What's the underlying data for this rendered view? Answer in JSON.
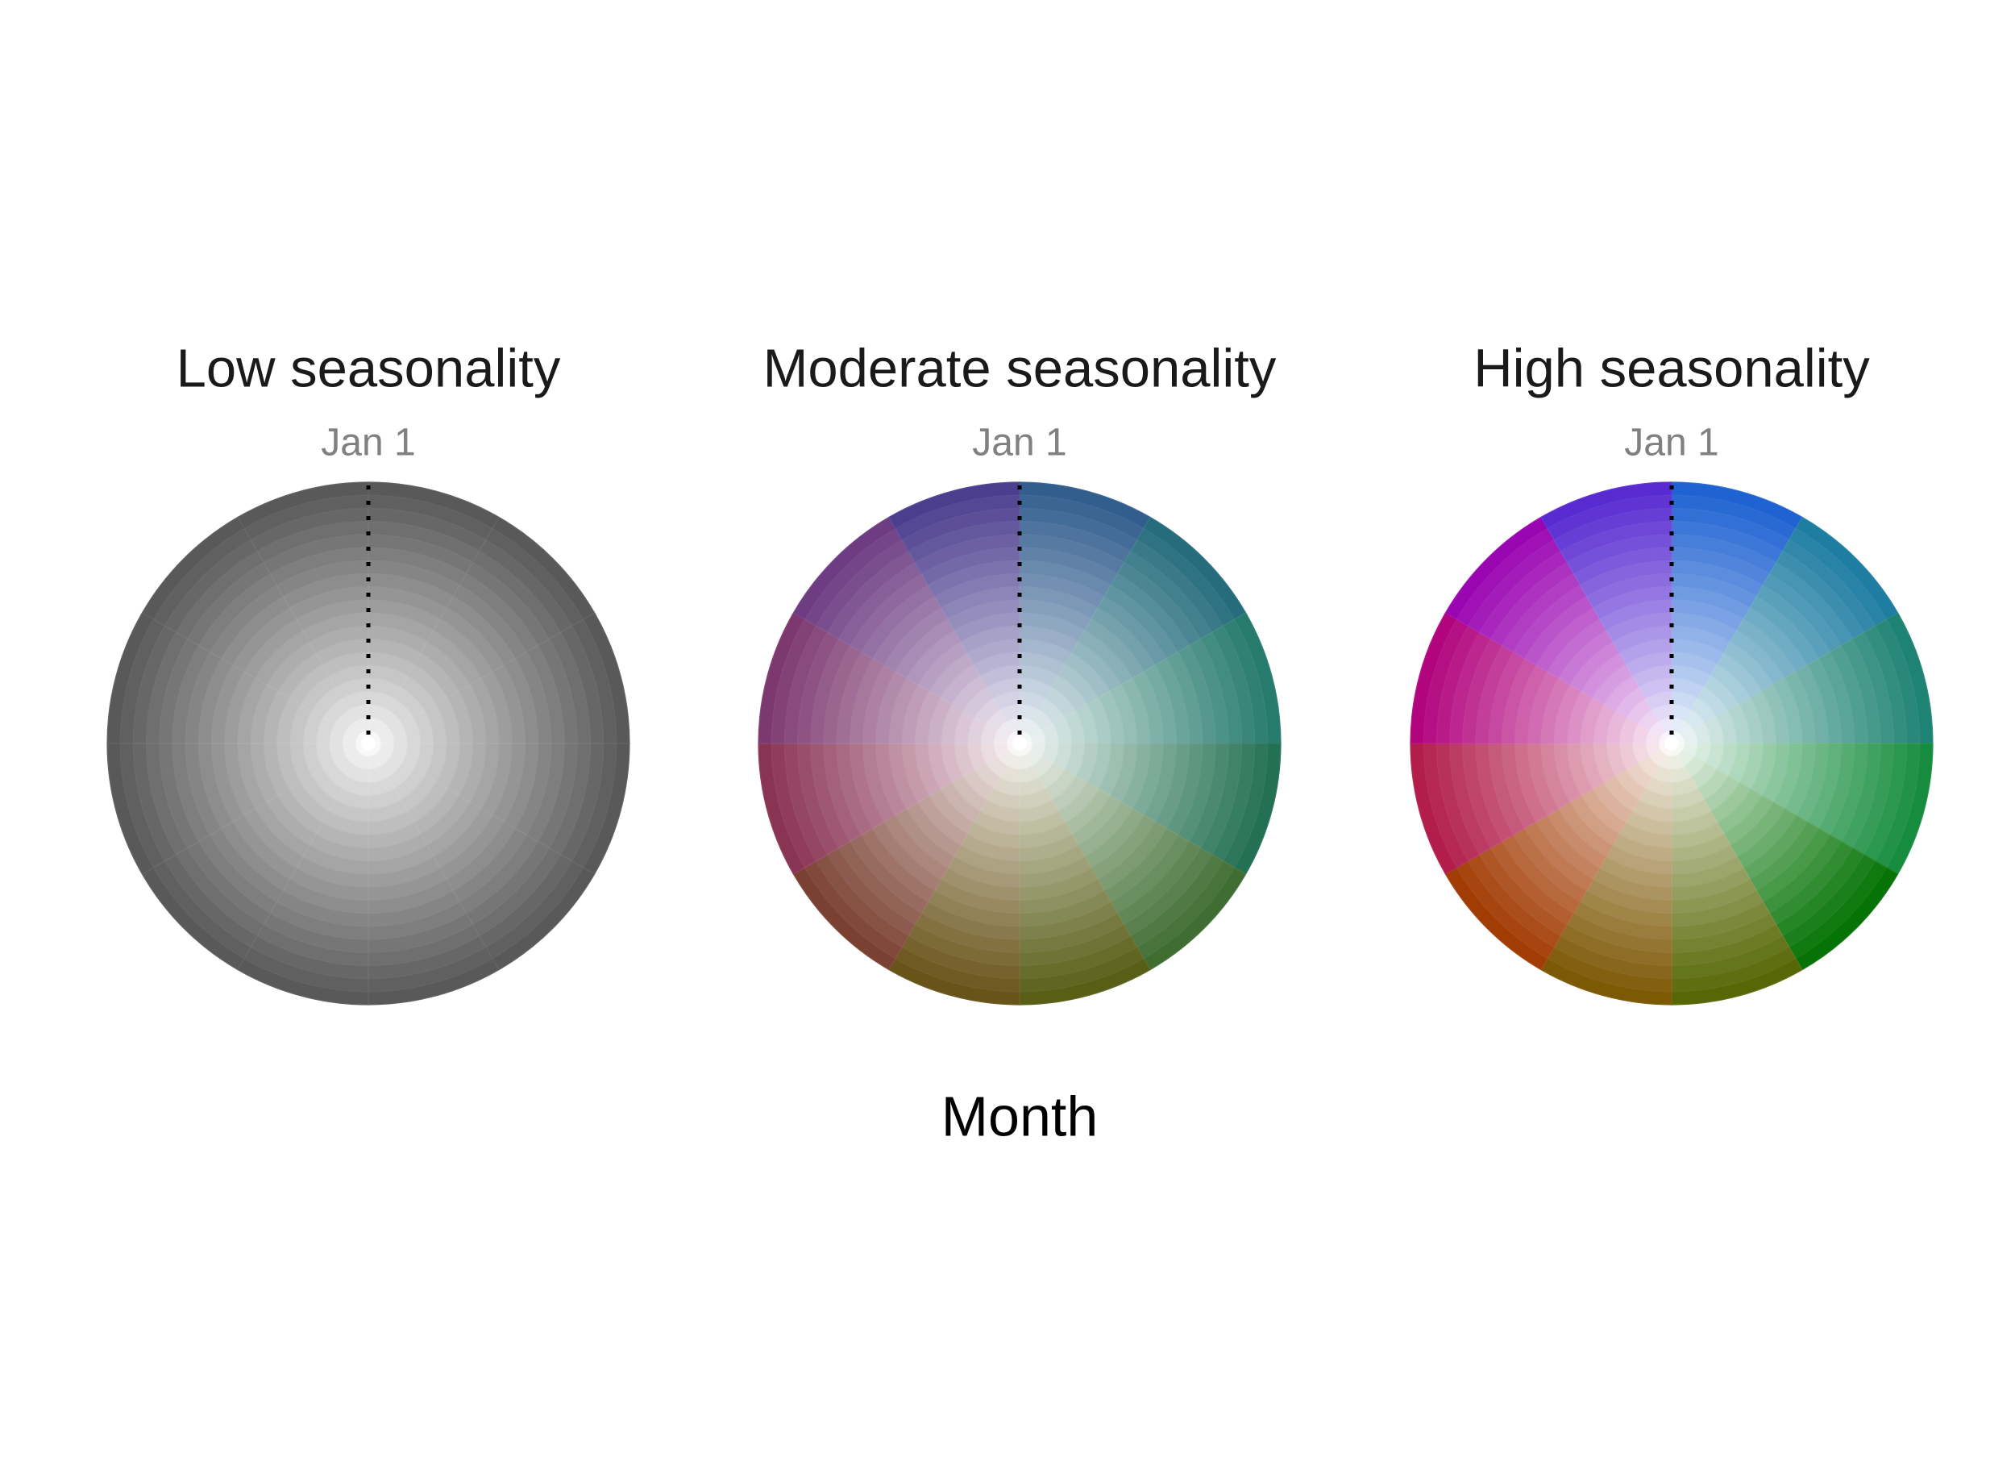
{
  "chart_data": [
    {
      "type": "polar",
      "title": "Low seasonality",
      "start_label": "Jan 1",
      "colors": [
        "#555555",
        "#555555",
        "#555555",
        "#555555",
        "#555555",
        "#555555",
        "#555555",
        "#555555",
        "#555555",
        "#555555",
        "#555555",
        "#555555"
      ]
    },
    {
      "type": "polar",
      "title": "Moderate seasonality",
      "start_label": "Jan 1",
      "colors": [
        "#2e5a8c",
        "#21697a",
        "#22786a",
        "#1f6d50",
        "#3b6a2e",
        "#555a12",
        "#654f14",
        "#773d2e",
        "#873050",
        "#7a356c",
        "#6a3880",
        "#483a8c"
      ]
    },
    {
      "type": "polar",
      "title": "High seasonality",
      "start_label": "Jan 1",
      "colors": [
        "#1a5fd0",
        "#1a7aa0",
        "#1a8070",
        "#128a3a",
        "#007000",
        "#536400",
        "#7a5400",
        "#a03800",
        "#b01848",
        "#b0007a",
        "#9800b0",
        "#5426d0"
      ]
    }
  ],
  "xlabel": "Month"
}
